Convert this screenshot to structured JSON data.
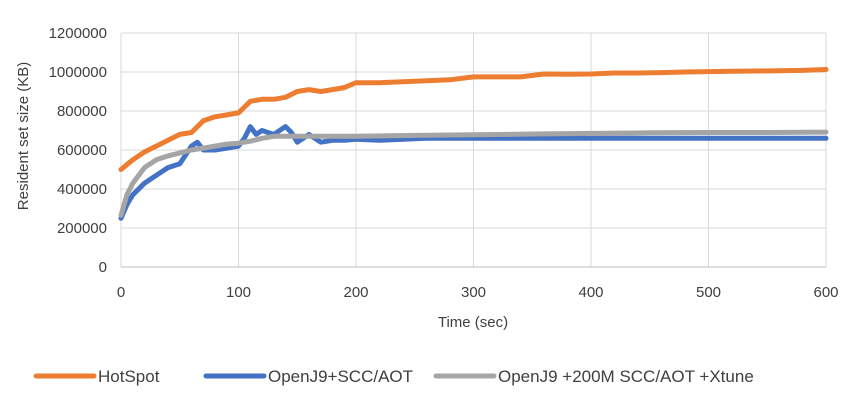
{
  "chart_data": {
    "type": "line",
    "title": "",
    "xlabel": "Time (sec)",
    "ylabel": "Resident set size (KB)",
    "xlim": [
      0,
      600
    ],
    "ylim": [
      0,
      1200000
    ],
    "x_ticks": [
      0,
      100,
      200,
      300,
      400,
      500,
      600
    ],
    "y_ticks": [
      0,
      200000,
      400000,
      600000,
      800000,
      1000000,
      1200000
    ],
    "x_tick_labels": [
      "0",
      "100",
      "200",
      "300",
      "400",
      "500",
      "600"
    ],
    "y_tick_labels": [
      "0",
      "200000",
      "400000",
      "600000",
      "800000",
      "1000000",
      "1200000"
    ],
    "grid": true,
    "legend_position": "bottom",
    "series": [
      {
        "name": "HotSpot",
        "color": "#ED7D31",
        "x": [
          0,
          10,
          20,
          30,
          40,
          50,
          60,
          70,
          80,
          90,
          100,
          110,
          120,
          130,
          140,
          150,
          160,
          170,
          180,
          190,
          200,
          220,
          240,
          260,
          280,
          300,
          320,
          340,
          360,
          380,
          400,
          420,
          440,
          460,
          480,
          500,
          520,
          540,
          560,
          580,
          600
        ],
        "y": [
          500000,
          550000,
          590000,
          620000,
          650000,
          680000,
          690000,
          750000,
          770000,
          780000,
          790000,
          850000,
          860000,
          860000,
          870000,
          900000,
          910000,
          900000,
          910000,
          920000,
          945000,
          945000,
          950000,
          955000,
          960000,
          975000,
          975000,
          975000,
          990000,
          988000,
          990000,
          995000,
          995000,
          997000,
          1000000,
          1002000,
          1004000,
          1005000,
          1006000,
          1008000,
          1013000
        ]
      },
      {
        "name": "OpenJ9+SCC/AOT",
        "color": "#4472C4",
        "x": [
          0,
          5,
          10,
          20,
          30,
          40,
          50,
          60,
          65,
          70,
          80,
          90,
          100,
          105,
          110,
          115,
          120,
          125,
          130,
          140,
          145,
          150,
          160,
          170,
          180,
          190,
          200,
          220,
          240,
          260,
          280,
          300,
          350,
          400,
          450,
          500,
          550,
          600
        ],
        "y": [
          250000,
          320000,
          370000,
          430000,
          470000,
          510000,
          530000,
          620000,
          640000,
          600000,
          600000,
          610000,
          620000,
          660000,
          720000,
          680000,
          700000,
          690000,
          680000,
          720000,
          690000,
          640000,
          680000,
          640000,
          650000,
          650000,
          655000,
          650000,
          655000,
          660000,
          660000,
          660000,
          660000,
          660000,
          660000,
          660000,
          660000,
          660000
        ]
      },
      {
        "name": "OpenJ9 +200M SCC/AOT +Xtune",
        "color": "#A5A5A5",
        "x": [
          0,
          5,
          10,
          20,
          30,
          40,
          50,
          60,
          70,
          80,
          90,
          100,
          110,
          120,
          130,
          140,
          150,
          170,
          200,
          250,
          300,
          350,
          400,
          450,
          500,
          550,
          600
        ],
        "y": [
          265000,
          370000,
          430000,
          510000,
          550000,
          570000,
          585000,
          600000,
          610000,
          620000,
          630000,
          635000,
          645000,
          660000,
          670000,
          670000,
          670000,
          670000,
          670000,
          675000,
          678000,
          682000,
          685000,
          688000,
          690000,
          690000,
          692000
        ]
      }
    ]
  }
}
